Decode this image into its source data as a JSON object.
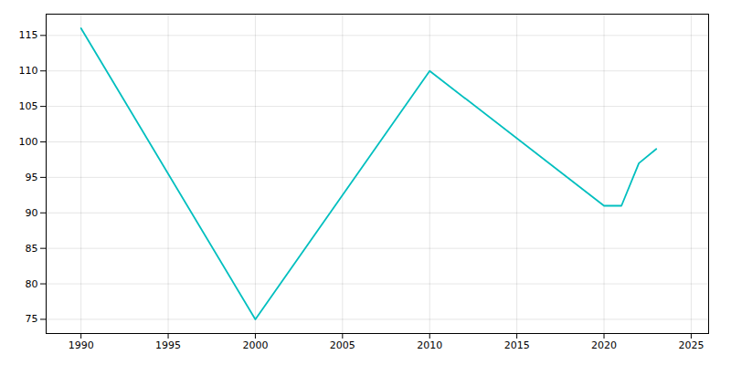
{
  "chart_data": {
    "type": "line",
    "x": [
      1990,
      2000,
      2010,
      2020,
      2021,
      2022,
      2023
    ],
    "values": [
      116,
      75,
      110,
      91,
      91,
      97,
      99
    ],
    "color": "#00BFBF",
    "xlim": [
      1988,
      2026
    ],
    "ylim": [
      73,
      118
    ],
    "xticks": [
      1990,
      1995,
      2000,
      2005,
      2010,
      2015,
      2020,
      2025
    ],
    "yticks": [
      75,
      80,
      85,
      90,
      95,
      100,
      105,
      110,
      115
    ],
    "grid": true
  }
}
